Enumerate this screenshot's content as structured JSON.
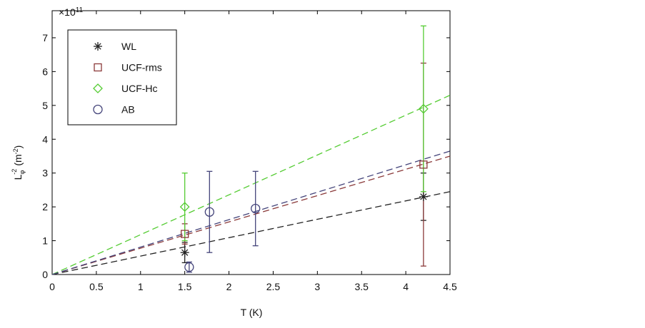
{
  "chart_data": {
    "type": "scatter",
    "y_multiplier": {
      "base": "×10",
      "exponent": "11"
    },
    "x_label": "T (K)",
    "y_label": {
      "base": "L",
      "sub": "φ",
      "sup": "-2",
      "unit": "(m",
      "unit_sup": "-2",
      "close": ")"
    },
    "xlim": [
      0,
      4.5
    ],
    "xticks": [
      0,
      0.5,
      1,
      1.5,
      2,
      2.5,
      3,
      3.5,
      4,
      4.5
    ],
    "ylim": [
      0,
      7.8
    ],
    "yticks": [
      0,
      1,
      2,
      3,
      4,
      5,
      6,
      7
    ],
    "legend": "upper left",
    "series": [
      {
        "name": "WL",
        "color": "#222222",
        "marker": "asterisk",
        "x": [
          1.5,
          4.2
        ],
        "values": [
          0.65,
          2.3
        ],
        "errors": [
          0.3,
          0.7
        ],
        "fit": {
          "x": [
            0,
            4.5
          ],
          "values": [
            0,
            2.45
          ]
        }
      },
      {
        "name": "UCF-rms",
        "color": "#8b3a3a",
        "marker": "square",
        "x": [
          1.5,
          4.2
        ],
        "values": [
          1.2,
          3.25
        ],
        "errors": [
          0.3,
          3.0
        ],
        "fit": {
          "x": [
            0,
            4.5
          ],
          "values": [
            0,
            3.5
          ]
        }
      },
      {
        "name": "UCF-Hc",
        "color": "#55cc33",
        "marker": "diamond",
        "x": [
          1.5,
          4.2
        ],
        "values": [
          2.0,
          4.9
        ],
        "errors": [
          1.0,
          2.45
        ],
        "fit": {
          "x": [
            0,
            4.5
          ],
          "values": [
            0,
            5.3
          ]
        }
      },
      {
        "name": "AB",
        "color": "#44447a",
        "marker": "circle",
        "x": [
          1.55,
          1.78,
          2.3
        ],
        "values": [
          0.22,
          1.85,
          1.95
        ],
        "errors": [
          0.15,
          1.2,
          1.1
        ],
        "fit": {
          "x": [
            0,
            4.5
          ],
          "values": [
            0,
            3.65
          ]
        }
      }
    ]
  }
}
